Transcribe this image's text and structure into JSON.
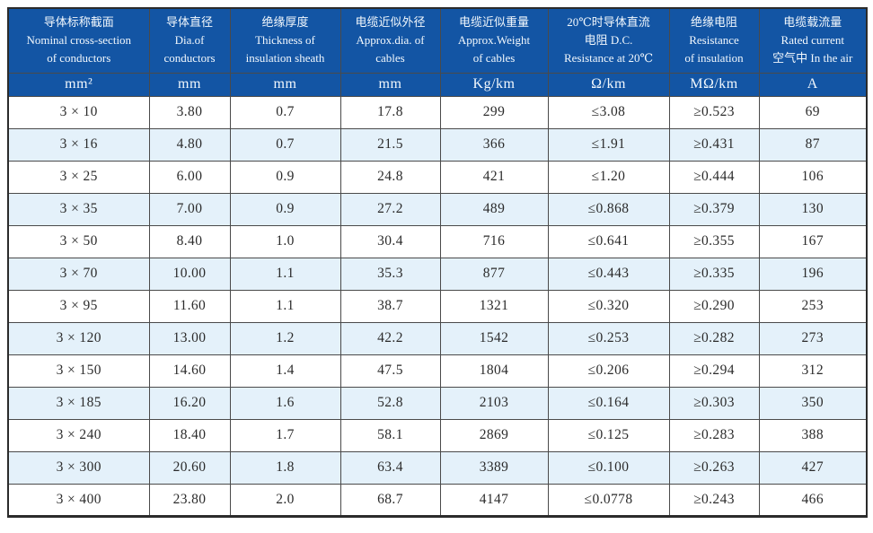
{
  "colors": {
    "header_bg": "#1355a4",
    "header_text": "#f2f8fd",
    "row_alt_bg": "#e4f1fa",
    "border": "#4a4a4a",
    "border_strong": "#2b2b2b",
    "page_bg": "#ffffff"
  },
  "chart_data": {
    "type": "table",
    "columns": [
      {
        "lines": [
          "导体标称截面",
          "Nominal cross-section",
          "of conductors"
        ],
        "unit": "mm²"
      },
      {
        "lines": [
          "导体直径",
          "Dia.of",
          "conductors"
        ],
        "unit": "mm"
      },
      {
        "lines": [
          "绝缘厚度",
          "Thickness of",
          "insulation sheath"
        ],
        "unit": "mm"
      },
      {
        "lines": [
          "电缆近似外径",
          "Approx.dia. of",
          "cables"
        ],
        "unit": "mm"
      },
      {
        "lines": [
          "电缆近似重量",
          "Approx.Weight",
          "of cables"
        ],
        "unit": "Kg/km"
      },
      {
        "lines": [
          "20℃时导体直流",
          "电阻 D.C.",
          "Resistance at 20℃"
        ],
        "unit": "Ω/km"
      },
      {
        "lines": [
          "绝缘电阻",
          "Resistance",
          "of insulation"
        ],
        "unit": "MΩ/km"
      },
      {
        "lines": [
          "电缆载流量",
          "Rated current",
          "空气中 In the air"
        ],
        "unit": "A"
      }
    ],
    "rows": [
      [
        "3 × 10",
        "3.80",
        "0.7",
        "17.8",
        "299",
        "≤3.08",
        "≥0.523",
        "69"
      ],
      [
        "3 × 16",
        "4.80",
        "0.7",
        "21.5",
        "366",
        "≤1.91",
        "≥0.431",
        "87"
      ],
      [
        "3 × 25",
        "6.00",
        "0.9",
        "24.8",
        "421",
        "≤1.20",
        "≥0.444",
        "106"
      ],
      [
        "3 × 35",
        "7.00",
        "0.9",
        "27.2",
        "489",
        "≤0.868",
        "≥0.379",
        "130"
      ],
      [
        "3 × 50",
        "8.40",
        "1.0",
        "30.4",
        "716",
        "≤0.641",
        "≥0.355",
        "167"
      ],
      [
        "3 × 70",
        "10.00",
        "1.1",
        "35.3",
        "877",
        "≤0.443",
        "≥0.335",
        "196"
      ],
      [
        "3 × 95",
        "11.60",
        "1.1",
        "38.7",
        "1321",
        "≤0.320",
        "≥0.290",
        "253"
      ],
      [
        "3 × 120",
        "13.00",
        "1.2",
        "42.2",
        "1542",
        "≤0.253",
        "≥0.282",
        "273"
      ],
      [
        "3 × 150",
        "14.60",
        "1.4",
        "47.5",
        "1804",
        "≤0.206",
        "≥0.294",
        "312"
      ],
      [
        "3 × 185",
        "16.20",
        "1.6",
        "52.8",
        "2103",
        "≤0.164",
        "≥0.303",
        "350"
      ],
      [
        "3 × 240",
        "18.40",
        "1.7",
        "58.1",
        "2869",
        "≤0.125",
        "≥0.283",
        "388"
      ],
      [
        "3 × 300",
        "20.60",
        "1.8",
        "63.4",
        "3389",
        "≤0.100",
        "≥0.263",
        "427"
      ],
      [
        "3 × 400",
        "23.80",
        "2.0",
        "68.7",
        "4147",
        "≤0.0778",
        "≥0.243",
        "466"
      ]
    ]
  }
}
